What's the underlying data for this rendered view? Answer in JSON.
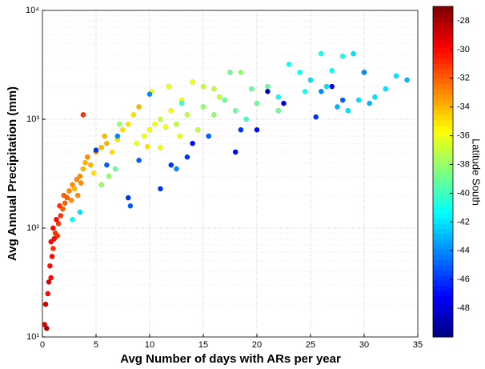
{
  "chart_data": {
    "type": "scatter",
    "xlabel": "Avg Number of days with ARs per year",
    "ylabel": "Avg Annual Precipitation (mm)",
    "colorbar_label": "Latitude South",
    "colormap": "jet",
    "yscale": "log",
    "grid": true,
    "xlim": [
      0,
      35
    ],
    "xticks": [
      0,
      5,
      10,
      15,
      20,
      25,
      30,
      35
    ],
    "ylim": [
      10,
      10000
    ],
    "yticks": [
      {
        "value": 10,
        "label": "10¹"
      },
      {
        "value": 100,
        "label": "10²"
      },
      {
        "value": 1000,
        "label": "10³"
      },
      {
        "value": 10000,
        "label": "10⁴"
      }
    ],
    "clim": [
      -50,
      -27
    ],
    "cticks": [
      -48,
      -46,
      -44,
      -42,
      -40,
      -38,
      -36,
      -34,
      -32,
      -30,
      -28
    ],
    "x": [
      0.2,
      0.4,
      0.3,
      0.5,
      0.6,
      0.8,
      0.7,
      0.9,
      1.0,
      0.8,
      1.2,
      1.0,
      1.4,
      1.5,
      1.7,
      1.3,
      1.9,
      2.1,
      1.6,
      2.3,
      2.0,
      3.8,
      1.1,
      2.5,
      2.8,
      3.0,
      3.2,
      3.5,
      2.7,
      3.8,
      4.0,
      4.5,
      4.2,
      5.0,
      5.5,
      6.0,
      4.8,
      3.3,
      5.8,
      6.5,
      7.0,
      7.5,
      8.0,
      8.5,
      9.0,
      3.6,
      9.5,
      10,
      10.5,
      11,
      11.5,
      12,
      12.5,
      13,
      14,
      15,
      16,
      10.2,
      11.8,
      13.5,
      12.8,
      11,
      8.8,
      16.5,
      9.8,
      14.5,
      6.2,
      6.8,
      7.2,
      5.5,
      17,
      18,
      19,
      20,
      21,
      15,
      17.5,
      18.5,
      19.5,
      22,
      16,
      13,
      23,
      24,
      25,
      26,
      27,
      28,
      29,
      30,
      31,
      32,
      33,
      34,
      27.5,
      28.5,
      29.5,
      30.5,
      22,
      24.5,
      26.5,
      3.5,
      2.8,
      5,
      6,
      7,
      8,
      8.2,
      9,
      11,
      12,
      13.5,
      14,
      15.5,
      18,
      18.5,
      20,
      21,
      22.5,
      25.5,
      26,
      27,
      28,
      30,
      12.5,
      10
    ],
    "y": [
      13,
      12,
      20,
      25,
      32,
      35,
      45,
      55,
      65,
      75,
      90,
      100,
      85,
      110,
      130,
      120,
      150,
      170,
      160,
      190,
      200,
      1100,
      80,
      220,
      250,
      230,
      280,
      300,
      180,
      350,
      400,
      380,
      450,
      500,
      550,
      600,
      320,
      200,
      700,
      500,
      650,
      800,
      900,
      1100,
      1300,
      260,
      700,
      800,
      900,
      1000,
      850,
      1200,
      900,
      1500,
      2200,
      2000,
      1900,
      1800,
      2000,
      1100,
      700,
      550,
      600,
      1600,
      560,
      800,
      300,
      350,
      900,
      250,
      1500,
      1200,
      1000,
      1400,
      2000,
      1300,
      2700,
      2700,
      1900,
      1200,
      1100,
      1400,
      3200,
      2700,
      2300,
      4000,
      2800,
      3800,
      4000,
      2700,
      1600,
      1900,
      2500,
      2300,
      1300,
      1200,
      1500,
      1400,
      1600,
      1800,
      2000,
      140,
      120,
      520,
      380,
      700,
      190,
      160,
      420,
      230,
      380,
      450,
      600,
      700,
      500,
      800,
      800,
      1800,
      1400,
      1050,
      1800,
      2000,
      1500,
      2700,
      350,
      1700
    ],
    "c": [
      -29,
      -28,
      -29,
      -30,
      -29,
      -30,
      -30,
      -30,
      -31,
      -30,
      -31,
      -30,
      -31,
      -31,
      -31,
      -30,
      -32,
      -32,
      -31,
      -32,
      -32,
      -31,
      -30,
      -33,
      -33,
      -34,
      -33,
      -33,
      -33,
      -34,
      -34,
      -34,
      -33,
      -34,
      -34,
      -34,
      -35,
      -33,
      -34,
      -35,
      -35,
      -35,
      -35,
      -35,
      -34,
      -33,
      -36,
      -36,
      -36,
      -37,
      -36,
      -36,
      -37,
      -36,
      -36,
      -37,
      -37,
      -36,
      -36,
      -37,
      -36,
      -36,
      -36,
      -37,
      -35,
      -37,
      -38,
      -39,
      -38,
      -38,
      -39,
      -39,
      -40,
      -39,
      -39,
      -38,
      -39,
      -38,
      -39,
      -39,
      -38,
      -40,
      -41,
      -41,
      -42,
      -41,
      -41,
      -41,
      -42,
      -42,
      -42,
      -42,
      -42,
      -43,
      -43,
      -42,
      -42,
      -43,
      -41,
      -41,
      -42,
      -42,
      -41,
      -46,
      -45,
      -44,
      -46,
      -45,
      -45,
      -46,
      -46,
      -46,
      -47,
      -45,
      -47,
      -46,
      -47,
      -49,
      -48,
      -46,
      -44,
      -47,
      -45,
      -44,
      -44,
      -44
    ]
  }
}
